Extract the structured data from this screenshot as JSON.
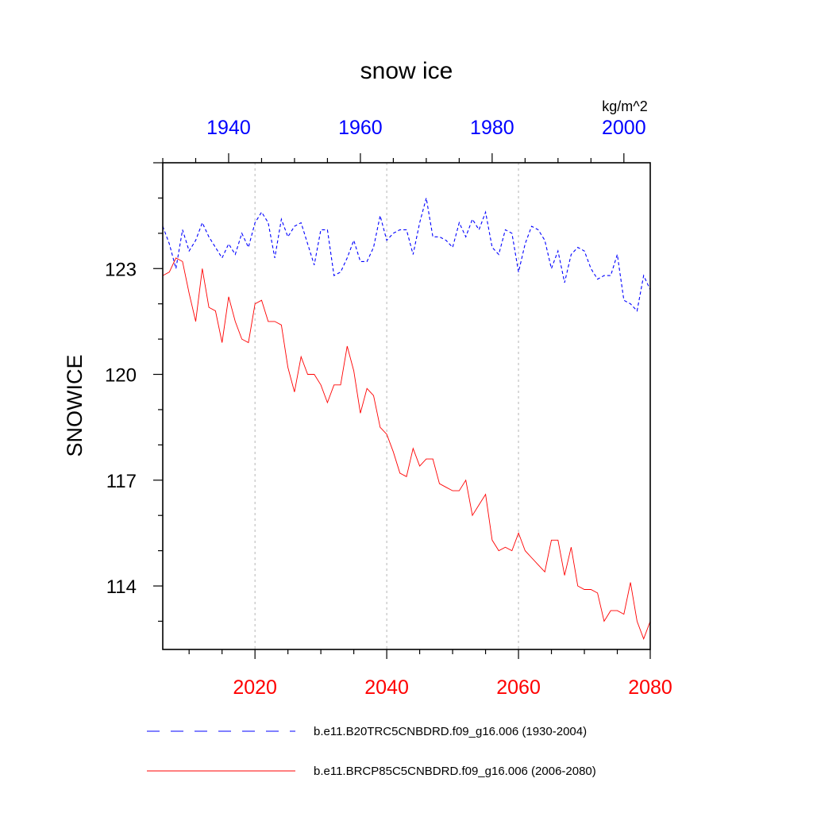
{
  "chart_data": {
    "type": "line",
    "title": "snow ice",
    "units": "kg/m^2",
    "ylabel": "SNOWICE",
    "ylim": [
      112.2,
      126.0
    ],
    "yticks": [
      "123",
      "120",
      "117",
      "114"
    ],
    "ytick_values": [
      123,
      120,
      117,
      114
    ],
    "grid": "vertical-dashed",
    "x_top": {
      "range": [
        1930,
        2004
      ],
      "ticks": [
        "1940",
        "1960",
        "1980",
        "2000"
      ],
      "tick_values": [
        1940,
        1960,
        1980,
        2000
      ],
      "color": "#0000ff"
    },
    "x_bottom": {
      "range": [
        2006,
        2080
      ],
      "ticks": [
        "2020",
        "2040",
        "2060",
        "2080"
      ],
      "tick_values": [
        2020,
        2040,
        2060,
        2080
      ],
      "color": "#ff0000"
    },
    "series": [
      {
        "name": "b.e11.B20TRC5CNBDRD.f09_g16.006 (1930-2004)",
        "axis": "top",
        "color": "#0000ff",
        "style": "dashed",
        "start_year": 1930,
        "values": [
          124.2,
          123.7,
          123.0,
          124.1,
          123.5,
          123.8,
          124.3,
          123.9,
          123.6,
          123.3,
          123.7,
          123.4,
          124.0,
          123.6,
          124.3,
          124.6,
          124.3,
          123.3,
          124.4,
          123.9,
          124.2,
          124.3,
          123.7,
          123.1,
          124.1,
          124.1,
          122.8,
          122.9,
          123.3,
          123.8,
          123.2,
          123.2,
          123.6,
          124.5,
          123.8,
          124.0,
          124.1,
          124.1,
          123.4,
          124.3,
          125.0,
          123.9,
          123.9,
          123.8,
          123.6,
          124.3,
          123.9,
          124.4,
          124.1,
          124.6,
          123.6,
          123.4,
          124.1,
          124.0,
          122.9,
          123.7,
          124.2,
          124.1,
          123.8,
          123.0,
          123.5,
          122.6,
          123.4,
          123.6,
          123.5,
          123.0,
          122.7,
          122.8,
          122.8,
          123.4,
          122.1,
          122.0,
          121.8,
          122.8,
          122.4
        ]
      },
      {
        "name": "b.e11.BRCP85C5CNBDRD.f09_g16.006 (2006-2080)",
        "axis": "bottom",
        "color": "#ff0000",
        "style": "solid",
        "start_year": 2006,
        "values": [
          122.8,
          122.9,
          123.3,
          123.2,
          122.3,
          121.5,
          123.0,
          121.9,
          121.8,
          120.9,
          122.2,
          121.5,
          121.0,
          120.9,
          122.0,
          122.1,
          121.5,
          121.5,
          121.4,
          120.2,
          119.5,
          120.5,
          120.0,
          120.0,
          119.7,
          119.2,
          119.7,
          119.7,
          120.8,
          120.1,
          118.9,
          119.6,
          119.4,
          118.5,
          118.3,
          117.8,
          117.2,
          117.1,
          117.9,
          117.4,
          117.6,
          117.6,
          116.9,
          116.8,
          116.7,
          116.7,
          117.0,
          116.0,
          116.3,
          116.6,
          115.3,
          115.0,
          115.1,
          115.0,
          115.5,
          115.0,
          114.8,
          114.6,
          114.4,
          115.3,
          115.3,
          114.3,
          115.1,
          114.0,
          113.9,
          113.9,
          113.8,
          113.0,
          113.3,
          113.3,
          113.2,
          114.1,
          113.0,
          112.5,
          113.0
        ]
      }
    ]
  }
}
